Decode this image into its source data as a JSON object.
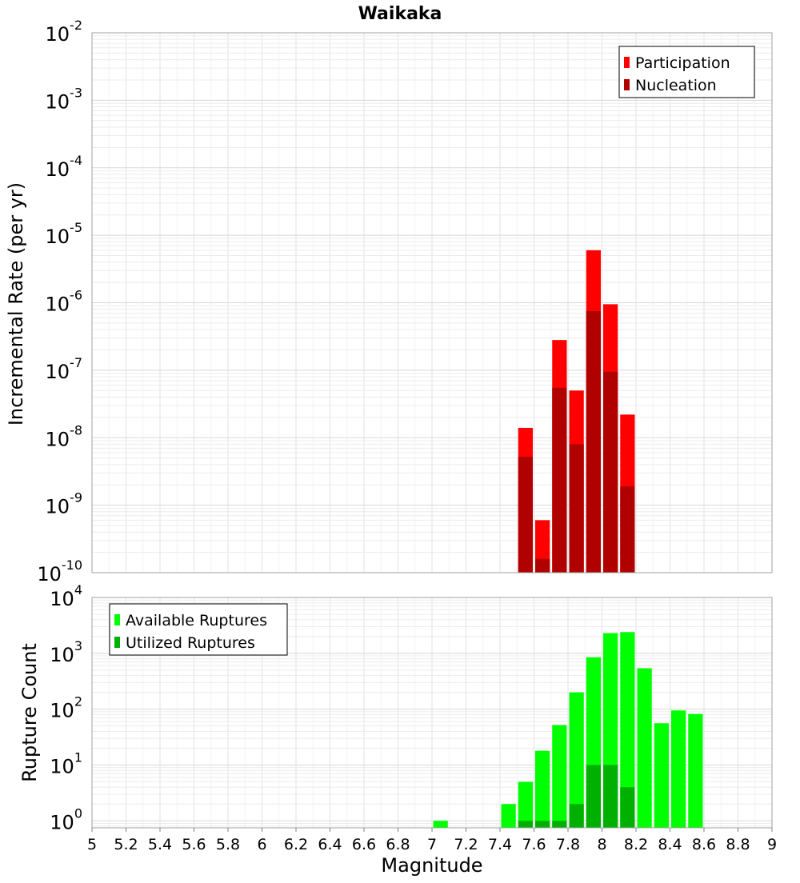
{
  "chart_data": [
    {
      "type": "bar",
      "title": "Waikaka",
      "xlabel": "",
      "ylabel": "Incremental Rate (per yr)",
      "xlim": [
        5,
        9
      ],
      "ylim": [
        1e-10,
        0.01
      ],
      "yscale": "log",
      "grid": true,
      "legend_position": "top-right",
      "y_tick_labels": [
        {
          "base": "10",
          "exp": "-10"
        },
        {
          "base": "10",
          "exp": "-9"
        },
        {
          "base": "10",
          "exp": "-8"
        },
        {
          "base": "10",
          "exp": "-7"
        },
        {
          "base": "10",
          "exp": "-6"
        },
        {
          "base": "10",
          "exp": "-5"
        },
        {
          "base": "10",
          "exp": "-4"
        },
        {
          "base": "10",
          "exp": "-3"
        },
        {
          "base": "10",
          "exp": "-2"
        }
      ],
      "bin_width": 0.1,
      "series": [
        {
          "name": "Participation",
          "color": "#ff0000",
          "x": [
            7.55,
            7.65,
            7.75,
            7.85,
            7.95,
            8.05,
            8.15
          ],
          "values": [
            1.4e-08,
            6e-10,
            2.8e-07,
            5e-08,
            6e-06,
            9.5e-07,
            2.2e-08
          ]
        },
        {
          "name": "Nucleation",
          "color": "#b00000",
          "x": [
            7.55,
            7.65,
            7.75,
            7.85,
            7.95,
            8.05,
            8.15
          ],
          "values": [
            5.2e-09,
            1.6e-10,
            5.5e-08,
            8e-09,
            7.5e-07,
            9.5e-08,
            1.9e-09
          ]
        }
      ]
    },
    {
      "type": "bar",
      "title": "",
      "xlabel": "Magnitude",
      "ylabel": "Rupture Count",
      "xlim": [
        5,
        9
      ],
      "ylim": [
        0.75,
        10000
      ],
      "yscale": "log",
      "grid": true,
      "legend_position": "top-left",
      "x_tick_labels": [
        "5",
        "5.2",
        "5.4",
        "5.6",
        "5.8",
        "6",
        "6.2",
        "6.4",
        "6.6",
        "6.8",
        "7",
        "7.2",
        "7.4",
        "7.6",
        "7.8",
        "8",
        "8.2",
        "8.4",
        "8.6",
        "8.8",
        "9"
      ],
      "y_tick_labels": [
        {
          "base": "10",
          "exp": "0"
        },
        {
          "base": "10",
          "exp": "1"
        },
        {
          "base": "10",
          "exp": "2"
        },
        {
          "base": "10",
          "exp": "3"
        },
        {
          "base": "10",
          "exp": "4"
        }
      ],
      "bin_width": 0.1,
      "series": [
        {
          "name": "Available Ruptures",
          "color": "#00ff00",
          "x": [
            7.05,
            7.45,
            7.55,
            7.65,
            7.75,
            7.85,
            7.95,
            8.05,
            8.15,
            8.25,
            8.35,
            8.45,
            8.55
          ],
          "values": [
            1,
            2,
            5,
            18,
            52,
            200,
            850,
            2300,
            2400,
            540,
            56,
            95,
            82
          ]
        },
        {
          "name": "Utilized Ruptures",
          "color": "#00b000",
          "x": [
            7.55,
            7.65,
            7.75,
            7.85,
            7.95,
            8.05,
            8.15
          ],
          "values": [
            1,
            1,
            1,
            2,
            10,
            10,
            4
          ]
        }
      ]
    }
  ]
}
